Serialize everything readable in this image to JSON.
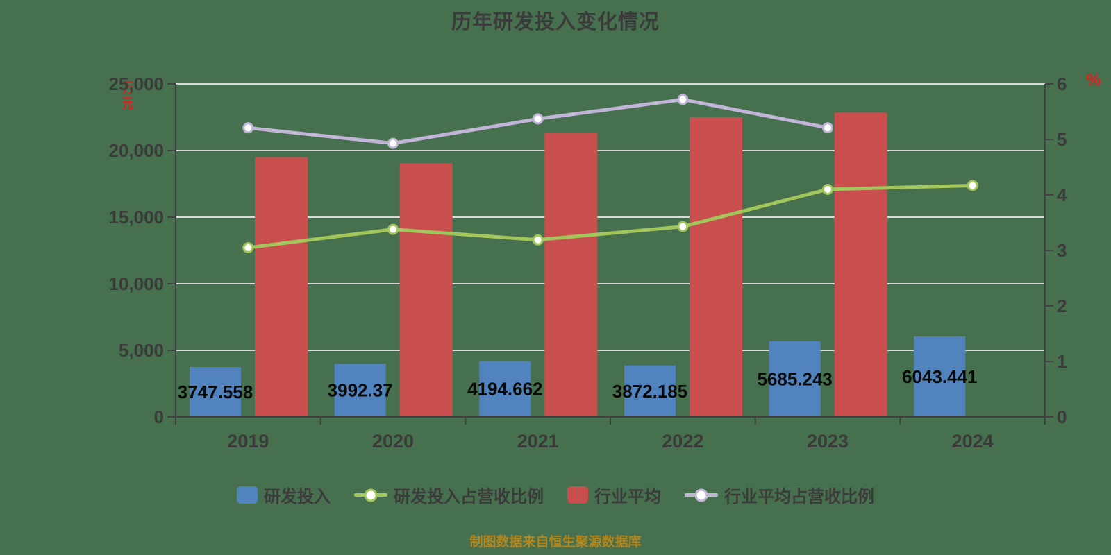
{
  "chart_data": {
    "type": "combo-bar-line",
    "title": "历年研发投入变化情况",
    "caption": "制图数据来自恒生聚源数据库",
    "categories": [
      "2019",
      "2020",
      "2021",
      "2022",
      "2023",
      "2024"
    ],
    "left_axis": {
      "unit": "万元",
      "unit_color": "#E01F1F",
      "min": 0,
      "max": 25000,
      "tick_labels": [
        "25,000",
        "20,000",
        "15,000",
        "10,000",
        "5,000",
        "0"
      ]
    },
    "right_axis": {
      "unit": "%",
      "unit_color": "#E01F1F",
      "min": 0,
      "max": 6,
      "tick_labels": [
        "6",
        "5",
        "4",
        "3",
        "2",
        "1",
        "0"
      ]
    },
    "grid": {
      "on": true,
      "color": "#DADADA"
    },
    "legend_position": "bottom",
    "series": [
      {
        "name": "研发投入",
        "type": "bar",
        "axis": "left",
        "color": "#5183BF",
        "values": [
          3747.558,
          3992.37,
          4194.662,
          3872.185,
          5685.243,
          6043.441
        ],
        "data_labels": [
          "3747.558",
          "3992.37",
          "4194.662",
          "3872.185",
          "5685.243",
          "6043.441"
        ]
      },
      {
        "name": "研发投入占营收比例",
        "type": "line",
        "axis": "right",
        "color": "#A2C65B",
        "values": [
          3.05,
          3.38,
          3.19,
          3.43,
          4.1,
          4.17
        ]
      },
      {
        "name": "行业平均",
        "type": "bar",
        "axis": "left",
        "color": "#C94E4E",
        "values": [
          19500,
          19050,
          21300,
          22500,
          22850,
          null
        ]
      },
      {
        "name": "行业平均占营收比例",
        "type": "line",
        "axis": "right",
        "color": "#C2B6D8",
        "values": [
          5.21,
          4.93,
          5.37,
          5.72,
          5.21,
          null
        ]
      }
    ],
    "text_color": "#3B3B3B",
    "data_label_color": "#0A0A0A",
    "axis_line_color": "#404040",
    "background_color": "#47704E"
  }
}
